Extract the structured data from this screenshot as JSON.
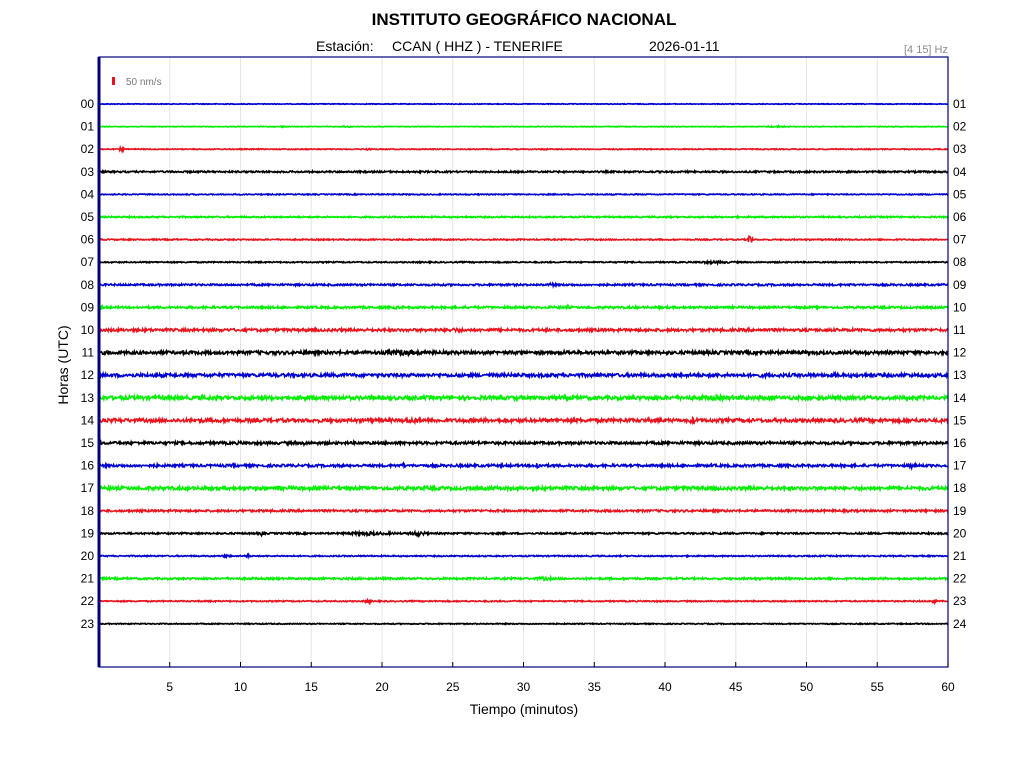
{
  "header": {
    "title": "INSTITUTO GEOGRÁFICO NACIONAL",
    "station_label": "Estación:",
    "station": "CCAN ( HHZ ) - TENERIFE",
    "date": "2026-01-11",
    "band": "[4 15] Hz"
  },
  "scale_label": "50 nm/s",
  "colors": {
    "scale_mark": "#e8141e",
    "frame": "#000080",
    "grid": "#e6e6e6",
    "sequence": [
      "#0000d0",
      "#00ee00",
      "#e8141e",
      "#000000"
    ]
  },
  "chart_data": {
    "type": "line",
    "title": "INSTITUTO GEOGRÁFICO NACIONAL",
    "xlabel": "Tiempo (minutos)",
    "ylabel": "Horas (UTC)",
    "xlim": [
      0,
      60
    ],
    "x_ticks": [
      "5",
      "10",
      "15",
      "20",
      "25",
      "30",
      "35",
      "40",
      "45",
      "50",
      "55",
      "60"
    ],
    "x_tick_values": [
      5,
      10,
      15,
      20,
      25,
      30,
      35,
      40,
      45,
      50,
      55,
      60
    ],
    "grid": true,
    "series": [
      {
        "left_label": "00",
        "right_label": "01",
        "color": "#0000d0",
        "amplitude": 0.35,
        "events": []
      },
      {
        "left_label": "01",
        "right_label": "02",
        "color": "#00ee00",
        "amplitude": 0.3,
        "events": [
          {
            "t": 13,
            "amp": 0.8,
            "dur": 0.6
          },
          {
            "t": 17.5,
            "amp": 1.1,
            "dur": 0.6
          },
          {
            "t": 48,
            "amp": 0.9,
            "dur": 1.5
          }
        ]
      },
      {
        "left_label": "02",
        "right_label": "03",
        "color": "#e8141e",
        "amplitude": 0.45,
        "events": [
          {
            "t": 1.6,
            "amp": 2.2,
            "dur": 0.3
          },
          {
            "t": 19,
            "amp": 0.9,
            "dur": 1.0
          },
          {
            "t": 31.5,
            "amp": 1.0,
            "dur": 0.4
          }
        ]
      },
      {
        "left_label": "03",
        "right_label": "04",
        "color": "#000000",
        "amplitude": 0.8,
        "events": []
      },
      {
        "left_label": "04",
        "right_label": "05",
        "color": "#0000d0",
        "amplitude": 0.5,
        "events": []
      },
      {
        "left_label": "05",
        "right_label": "06",
        "color": "#00ee00",
        "amplitude": 0.7,
        "events": []
      },
      {
        "left_label": "06",
        "right_label": "07",
        "color": "#e8141e",
        "amplitude": 0.6,
        "events": [
          {
            "t": 46,
            "amp": 7,
            "dur": 0.25
          }
        ]
      },
      {
        "left_label": "07",
        "right_label": "08",
        "color": "#000000",
        "amplitude": 0.6,
        "events": [
          {
            "t": 43.5,
            "amp": 1.3,
            "dur": 3.5
          }
        ]
      },
      {
        "left_label": "08",
        "right_label": "09",
        "color": "#0000d0",
        "amplitude": 0.9,
        "events": [
          {
            "t": 32,
            "amp": 2.6,
            "dur": 0.3
          },
          {
            "t": 53,
            "amp": 1.4,
            "dur": 0.4
          }
        ]
      },
      {
        "left_label": "09",
        "right_label": "10",
        "color": "#00ee00",
        "amplitude": 1.0,
        "events": [
          {
            "t": 21,
            "amp": 1.4,
            "dur": 1.5
          },
          {
            "t": 33,
            "amp": 1.3,
            "dur": 2.0
          }
        ]
      },
      {
        "left_label": "10",
        "right_label": "11",
        "color": "#e8141e",
        "amplitude": 1.3,
        "events": [
          {
            "t": 25,
            "amp": 2.0,
            "dur": 3.0
          },
          {
            "t": 17,
            "amp": 1.5,
            "dur": 2.0
          }
        ]
      },
      {
        "left_label": "11",
        "right_label": "12",
        "color": "#000000",
        "amplitude": 1.6,
        "events": [
          {
            "t": 21.5,
            "amp": 2.8,
            "dur": 3.5
          },
          {
            "t": 33,
            "amp": 2.0,
            "dur": 2.5
          },
          {
            "t": 14,
            "amp": 1.6,
            "dur": 3.0
          }
        ]
      },
      {
        "left_label": "12",
        "right_label": "13",
        "color": "#0000d0",
        "amplitude": 1.6,
        "events": [
          {
            "t": 47,
            "amp": 2.0,
            "dur": 2.0
          },
          {
            "t": 52,
            "amp": 2.2,
            "dur": 3.0
          },
          {
            "t": 57,
            "amp": 2.0,
            "dur": 2.0
          }
        ]
      },
      {
        "left_label": "13",
        "right_label": "14",
        "color": "#00ee00",
        "amplitude": 1.8,
        "events": [
          {
            "t": 44,
            "amp": 2.4,
            "dur": 8.0
          },
          {
            "t": 23,
            "amp": 2.0,
            "dur": 3.0
          }
        ]
      },
      {
        "left_label": "14",
        "right_label": "15",
        "color": "#e8141e",
        "amplitude": 1.7,
        "events": [
          {
            "t": 22,
            "amp": 2.6,
            "dur": 3.0
          },
          {
            "t": 42,
            "amp": 4.0,
            "dur": 0.5
          },
          {
            "t": 13,
            "amp": 1.8,
            "dur": 2.0
          }
        ]
      },
      {
        "left_label": "15",
        "right_label": "16",
        "color": "#000000",
        "amplitude": 1.3,
        "events": [
          {
            "t": 10,
            "amp": 1.6,
            "dur": 2.0
          },
          {
            "t": 14.5,
            "amp": 2.5,
            "dur": 0.3
          }
        ]
      },
      {
        "left_label": "16",
        "right_label": "17",
        "color": "#0000d0",
        "amplitude": 1.2,
        "events": [
          {
            "t": 4,
            "amp": 2.0,
            "dur": 0.4
          },
          {
            "t": 9.5,
            "amp": 2.0,
            "dur": 0.4
          },
          {
            "t": 21.5,
            "amp": 3.5,
            "dur": 0.2
          },
          {
            "t": 31,
            "amp": 4.0,
            "dur": 0.4
          },
          {
            "t": 57.5,
            "amp": 2.6,
            "dur": 0.6
          }
        ]
      },
      {
        "left_label": "17",
        "right_label": "18",
        "color": "#00ee00",
        "amplitude": 1.6,
        "events": [
          {
            "t": 11.5,
            "amp": 2.2,
            "dur": 1.0
          }
        ]
      },
      {
        "left_label": "18",
        "right_label": "19",
        "color": "#e8141e",
        "amplitude": 1.0,
        "events": []
      },
      {
        "left_label": "19",
        "right_label": "20",
        "color": "#000000",
        "amplitude": 0.8,
        "events": [
          {
            "t": 19,
            "amp": 1.8,
            "dur": 4.0
          },
          {
            "t": 22.5,
            "amp": 2.6,
            "dur": 1.2
          },
          {
            "t": 11.5,
            "amp": 3.0,
            "dur": 0.2
          }
        ]
      },
      {
        "left_label": "20",
        "right_label": "21",
        "color": "#0000d0",
        "amplitude": 0.6,
        "events": [
          {
            "t": 9,
            "amp": 1.6,
            "dur": 0.6
          },
          {
            "t": 10.5,
            "amp": 1.8,
            "dur": 0.4
          }
        ]
      },
      {
        "left_label": "21",
        "right_label": "22",
        "color": "#00ee00",
        "amplitude": 0.9,
        "events": [
          {
            "t": 31.5,
            "amp": 1.8,
            "dur": 1.5
          }
        ]
      },
      {
        "left_label": "22",
        "right_label": "23",
        "color": "#e8141e",
        "amplitude": 0.6,
        "events": [
          {
            "t": 19,
            "amp": 2.0,
            "dur": 0.5
          },
          {
            "t": 59,
            "amp": 2.4,
            "dur": 0.4
          }
        ]
      },
      {
        "left_label": "23",
        "right_label": "24",
        "color": "#000000",
        "amplitude": 0.5,
        "events": []
      }
    ]
  }
}
